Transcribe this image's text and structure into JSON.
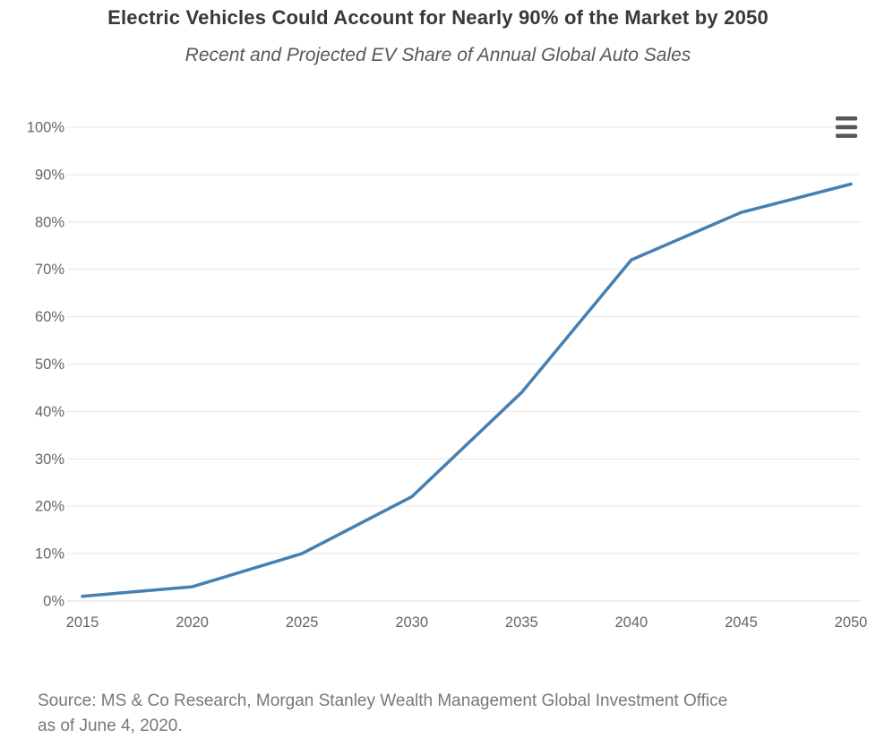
{
  "header": {
    "title": "Electric Vehicles Could Account for Nearly 90% of the Market by 2050",
    "subtitle": "Recent and Projected EV Share of Annual Global Auto Sales"
  },
  "chart_data": {
    "type": "line",
    "title": "Electric Vehicles Could Account for Nearly 90% of the Market by 2050",
    "subtitle": "Recent and Projected EV Share of Annual Global Auto Sales",
    "x": [
      2015,
      2020,
      2025,
      2030,
      2035,
      2040,
      2045,
      2050
    ],
    "xtick_labels": [
      "2015",
      "2020",
      "2025",
      "2030",
      "2035",
      "2040",
      "2045",
      "2050"
    ],
    "values": [
      1,
      3,
      10,
      22,
      44,
      72,
      82,
      88
    ],
    "xlabel": "",
    "ylabel": "",
    "ylim": [
      0,
      100
    ],
    "ytick_values": [
      0,
      10,
      20,
      30,
      40,
      50,
      60,
      70,
      80,
      90,
      100
    ],
    "ytick_labels": [
      "0%",
      "10%",
      "20%",
      "30%",
      "40%",
      "50%",
      "60%",
      "70%",
      "80%",
      "90%",
      "100%"
    ],
    "grid": "horizontal",
    "legend": "none"
  },
  "colors": {
    "line": "#4580B2",
    "gridline": "#e7e7e7",
    "axis_line": "#d9d9d9",
    "axis_label": "#66666a",
    "title": "#37383b",
    "subtitle": "#58585b",
    "source": "#77787b",
    "menu_icon": "#58585a"
  },
  "icons": {
    "context_menu": "hamburger-menu-icon"
  },
  "footer": {
    "source_line1": "Source: MS & Co Research, Morgan Stanley Wealth Management Global Investment Office",
    "source_line2": "as of June 4, 2020."
  }
}
